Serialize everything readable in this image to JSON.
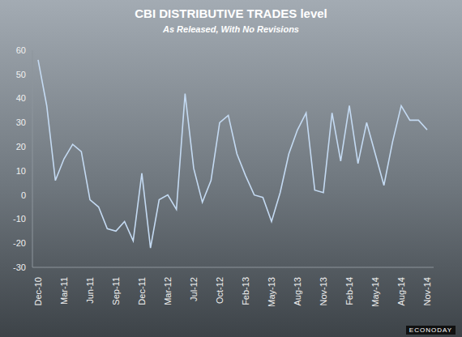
{
  "chart_data": {
    "type": "line",
    "title": "CBI DISTRIBUTIVE TRADES level",
    "subtitle": "As Released, With No Revisions",
    "annotations": [
      "ECONODAY"
    ],
    "categories": [
      "Dec-10",
      null,
      null,
      "Mar-11",
      null,
      null,
      "Jun-11",
      null,
      null,
      "Sep-11",
      null,
      null,
      "Dec-11",
      null,
      null,
      "Mar-12",
      null,
      null,
      "Jul-12",
      null,
      null,
      "Oct-12",
      null,
      null,
      "Feb-13",
      null,
      null,
      "May-13",
      null,
      null,
      "Aug-13",
      null,
      null,
      "Nov-13",
      null,
      null,
      "Feb-14",
      null,
      null,
      "May-14",
      null,
      null,
      "Aug-14",
      null,
      null,
      "Nov-14"
    ],
    "values": [
      56,
      37,
      6,
      15,
      21,
      18,
      -2,
      -5,
      -14,
      -15,
      -11,
      -19,
      9,
      -22,
      -2,
      0,
      -6,
      42,
      11,
      -3,
      6,
      30,
      33,
      17,
      8,
      0,
      -1,
      -11,
      1,
      17,
      27,
      34,
      2,
      1,
      34,
      14,
      37,
      13,
      30,
      17,
      4,
      22,
      37,
      31,
      31,
      27
    ],
    "color": "#c4daf2",
    "ylim": [
      -30,
      60
    ],
    "yticks": [
      -30,
      -20,
      -10,
      0,
      10,
      20,
      30,
      40,
      50,
      60
    ],
    "grid": false
  }
}
